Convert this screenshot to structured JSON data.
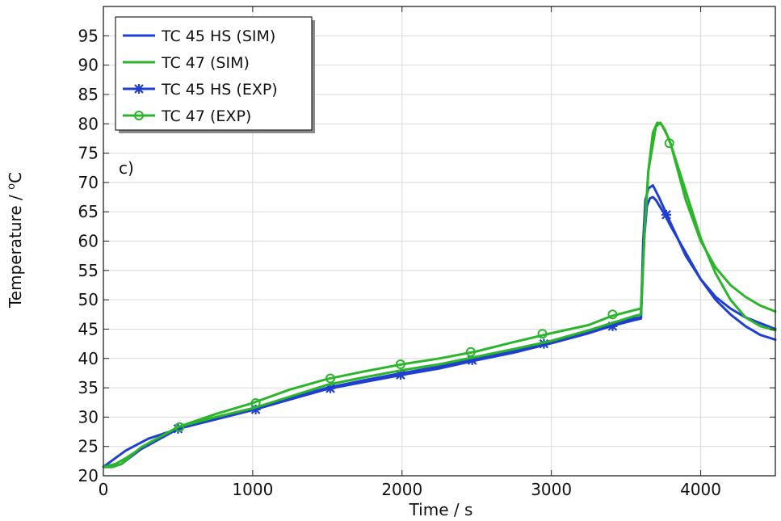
{
  "chart_data": {
    "type": "line",
    "title": "",
    "xlabel": "Time / s",
    "ylabel": "Temperature / °C",
    "ylabel_main": "Temperature / ",
    "ylabel_sup": "o",
    "ylabel_unit": "C",
    "annotation": "c)",
    "xlim": [
      0,
      4500
    ],
    "ylim": [
      20,
      100
    ],
    "x_ticks": [
      0,
      1000,
      2000,
      3000,
      4000
    ],
    "y_ticks": [
      20,
      25,
      30,
      35,
      40,
      45,
      50,
      55,
      60,
      65,
      70,
      75,
      80,
      85,
      90,
      95
    ],
    "grid": true,
    "legend_position": "top-left",
    "series": [
      {
        "name": "TC 45 HS (SIM)",
        "color": "#1f3fcf",
        "marker": "none",
        "x": [
          0,
          80,
          150,
          300,
          500,
          750,
          1000,
          1250,
          1500,
          1750,
          2000,
          2250,
          2500,
          2750,
          3000,
          3250,
          3400,
          3550,
          3600,
          3615,
          3630,
          3650,
          3680,
          3720,
          3800,
          3900,
          4000,
          4100,
          4200,
          4300,
          4400,
          4500
        ],
        "y": [
          21.5,
          23.0,
          24.3,
          26.3,
          28.0,
          29.8,
          31.5,
          33.2,
          35.0,
          36.3,
          37.5,
          38.6,
          40.0,
          41.3,
          42.8,
          44.5,
          45.8,
          46.8,
          47.0,
          60.0,
          67.0,
          69.0,
          69.5,
          67.5,
          63.0,
          57.5,
          53.5,
          50.5,
          48.5,
          47.0,
          46.0,
          45.0
        ]
      },
      {
        "name": "TC 47 (SIM)",
        "color": "#2bb52b",
        "marker": "none",
        "x": [
          0,
          80,
          150,
          300,
          500,
          750,
          1000,
          1250,
          1500,
          1750,
          2000,
          2250,
          2500,
          2750,
          3000,
          3250,
          3400,
          3550,
          3600,
          3625,
          3650,
          3700,
          3730,
          3760,
          3800,
          3900,
          4000,
          4100,
          4200,
          4300,
          4400,
          4500
        ],
        "y": [
          21.5,
          22.0,
          23.0,
          25.5,
          28.3,
          30.5,
          32.4,
          34.7,
          36.5,
          37.8,
          39.0,
          40.0,
          41.2,
          42.8,
          44.3,
          45.7,
          47.2,
          48.2,
          48.5,
          62.0,
          72.0,
          79.5,
          80.2,
          79.0,
          76.5,
          67.0,
          60.0,
          55.5,
          52.5,
          50.5,
          49.0,
          48.0
        ]
      },
      {
        "name": "TC 45 HS (EXP)",
        "color": "#1f3fcf",
        "marker": "x",
        "x": [
          0,
          60,
          120,
          250,
          500,
          750,
          1000,
          1250,
          1500,
          1750,
          2000,
          2250,
          2500,
          2750,
          3000,
          3250,
          3400,
          3550,
          3600,
          3620,
          3640,
          3660,
          3680,
          3700,
          3760,
          3800,
          3900,
          4000,
          4100,
          4200,
          4300,
          4400,
          4500
        ],
        "y": [
          21.5,
          21.5,
          22.0,
          24.5,
          28.0,
          29.6,
          31.2,
          33.0,
          34.8,
          36.0,
          37.2,
          38.3,
          39.7,
          41.0,
          42.6,
          44.3,
          45.5,
          46.5,
          46.8,
          60.0,
          66.0,
          67.3,
          67.5,
          67.0,
          64.5,
          62.5,
          58.0,
          53.5,
          50.0,
          47.5,
          45.5,
          44.0,
          43.2
        ],
        "markers": [
          [
            500,
            28.0
          ],
          [
            1020,
            31.3
          ],
          [
            1520,
            34.9
          ],
          [
            1990,
            37.2
          ],
          [
            2470,
            39.7
          ],
          [
            2950,
            42.5
          ],
          [
            3410,
            45.5
          ],
          [
            3770,
            64.5
          ]
        ]
      },
      {
        "name": "TC 47 (EXP)",
        "color": "#2bb52b",
        "marker": "o",
        "x": [
          0,
          60,
          120,
          250,
          500,
          750,
          1000,
          1250,
          1500,
          1750,
          2000,
          2250,
          2500,
          2750,
          3000,
          3250,
          3400,
          3550,
          3600,
          3625,
          3650,
          3680,
          3710,
          3740,
          3780,
          3800,
          3900,
          4000,
          4100,
          4200,
          4300,
          4400,
          4500
        ],
        "y": [
          21.5,
          21.5,
          22.0,
          24.8,
          28.3,
          30.0,
          31.5,
          33.5,
          35.5,
          36.8,
          38.0,
          39.0,
          40.3,
          41.6,
          43.0,
          44.8,
          46.0,
          47.2,
          47.5,
          62.0,
          72.0,
          78.5,
          80.2,
          79.8,
          77.8,
          76.5,
          68.5,
          60.5,
          54.5,
          50.0,
          47.0,
          45.5,
          44.8
        ],
        "markers": [
          [
            510,
            28.3
          ],
          [
            1020,
            32.4
          ],
          [
            1520,
            36.6
          ],
          [
            1990,
            39.0
          ],
          [
            2460,
            41.1
          ],
          [
            2940,
            44.2
          ],
          [
            3410,
            47.5
          ],
          [
            3790,
            76.7
          ]
        ]
      }
    ]
  }
}
